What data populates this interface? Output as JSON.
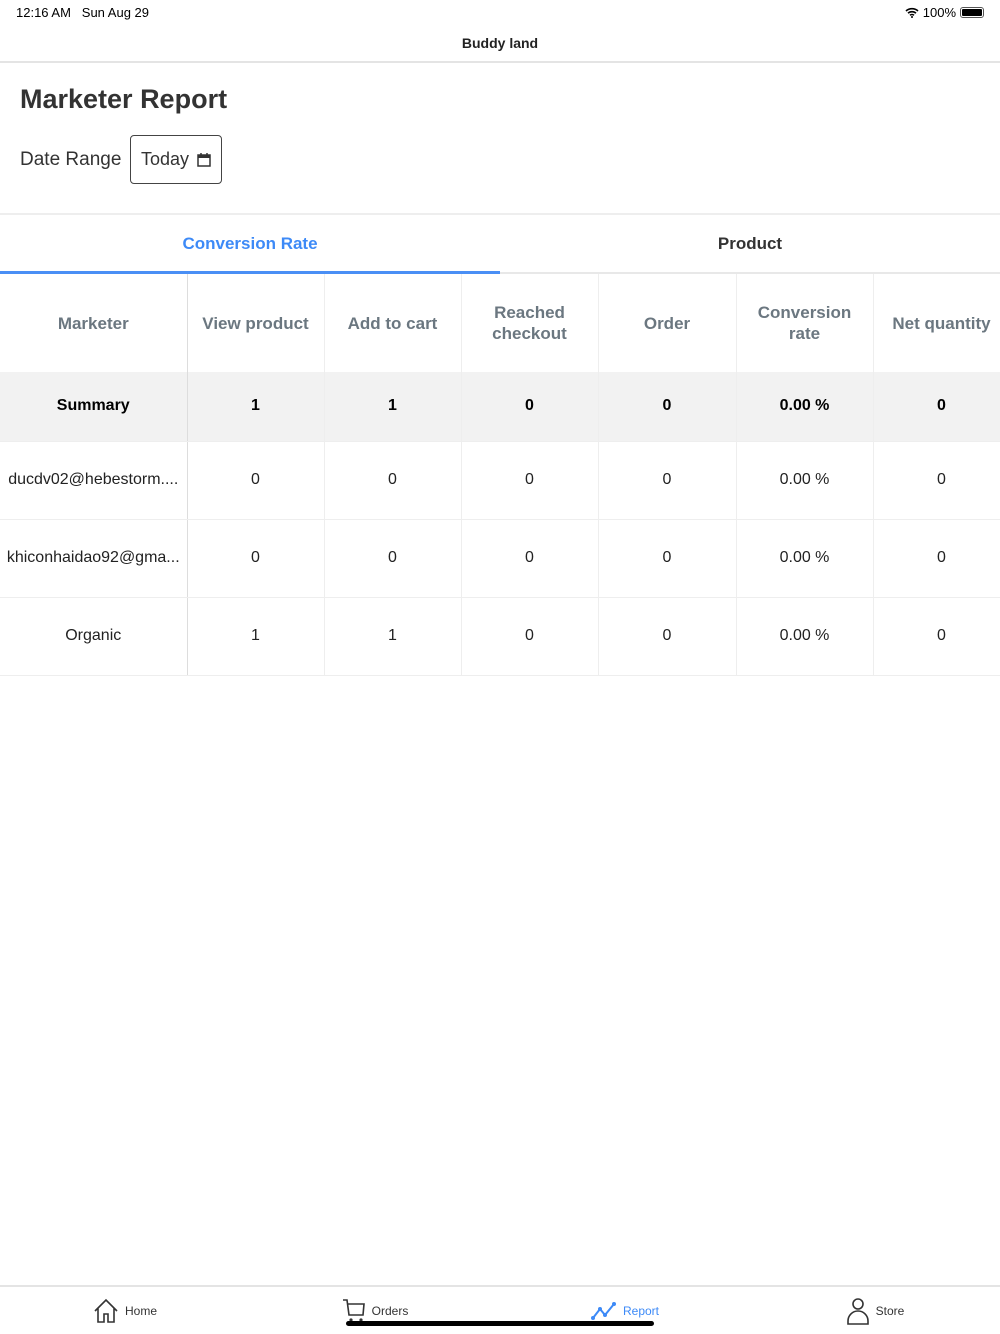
{
  "status": {
    "time": "12:16 AM",
    "date": "Sun Aug 29",
    "battery": "100%"
  },
  "app_title": "Buddy land",
  "page_title": "Marketer Report",
  "date_range": {
    "label": "Date Range",
    "value": "Today"
  },
  "tabs": [
    {
      "label": "Conversion Rate",
      "active": true
    },
    {
      "label": "Product",
      "active": false
    }
  ],
  "table": {
    "headers": [
      "Marketer",
      "View product",
      "Add to cart",
      "Reached checkout",
      "Order",
      "Conversion rate",
      "Net quantity"
    ],
    "summary": [
      "Summary",
      "1",
      "1",
      "0",
      "0",
      "0.00 %",
      "0"
    ],
    "rows": [
      [
        "ducdv02@hebestorm....",
        "0",
        "0",
        "0",
        "0",
        "0.00 %",
        "0"
      ],
      [
        "khiconhaidao92@gma...",
        "0",
        "0",
        "0",
        "0",
        "0.00 %",
        "0"
      ],
      [
        "Organic",
        "1",
        "1",
        "0",
        "0",
        "0.00 %",
        "0"
      ]
    ]
  },
  "bottom_nav": [
    {
      "label": "Home",
      "icon": "home-icon"
    },
    {
      "label": "Orders",
      "icon": "cart-icon"
    },
    {
      "label": "Report",
      "icon": "chart-line-icon",
      "active": true
    },
    {
      "label": "Store",
      "icon": "user-icon"
    }
  ],
  "colors": {
    "accent": "#3d8af7",
    "header_text": "#6b7780",
    "summary_bg": "#f2f2f2"
  }
}
